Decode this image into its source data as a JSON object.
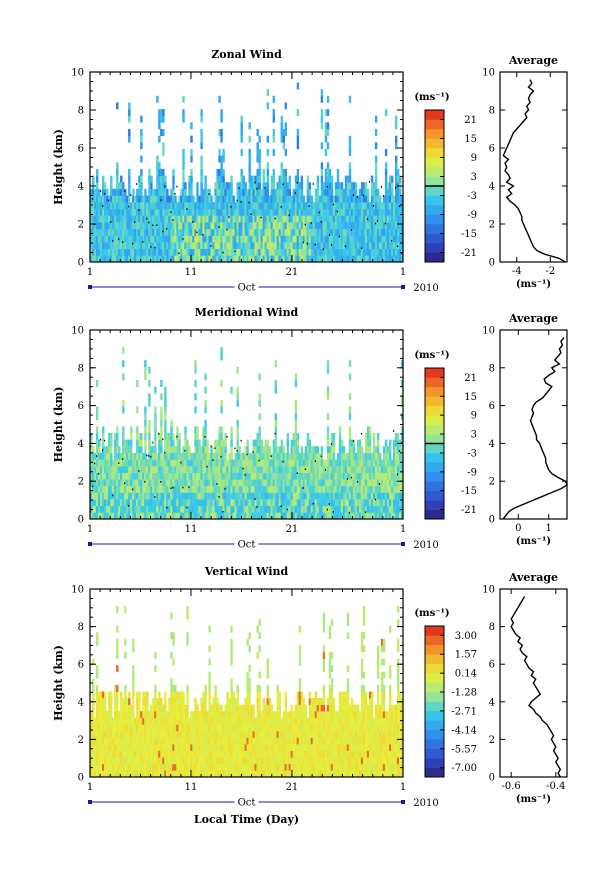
{
  "chart_data": [
    {
      "type": "heatmap",
      "title": "Zonal Wind",
      "ylabel": "Height (km)",
      "xlabel": "",
      "ylim": [
        0,
        10
      ],
      "yticks": [
        "0",
        "2",
        "4",
        "6",
        "8",
        "10"
      ],
      "xticks": [
        "1",
        "11",
        "21",
        "1"
      ],
      "month_label": "Oct",
      "year_label": "2010",
      "colorbar": {
        "unit": "(ms⁻¹)",
        "ticks": [
          "21",
          "15",
          "9",
          "3",
          "-3",
          "-9",
          "-15",
          "-21"
        ],
        "range": [
          -24,
          24
        ],
        "contour_level": 0
      },
      "profile": {
        "title": "Average",
        "unit_label": "(ms⁻¹)",
        "xticks": [
          "-4",
          "-2"
        ],
        "xlim": [
          -5.0,
          -1.0
        ],
        "heights": [
          0.0,
          0.2,
          0.4,
          0.6,
          0.8,
          1.0,
          1.2,
          1.4,
          1.6,
          1.8,
          2.0,
          2.2,
          2.4,
          2.6,
          2.8,
          3.0,
          3.2,
          3.4,
          3.6,
          3.8,
          4.0,
          4.2,
          4.4,
          4.6,
          4.8,
          5.0,
          5.2,
          5.4,
          5.6,
          5.8,
          6.0,
          6.2,
          6.4,
          6.6,
          6.8,
          7.0,
          7.2,
          7.4,
          7.6,
          7.8,
          8.0,
          8.2,
          8.4,
          8.6,
          8.8,
          9.0,
          9.2,
          9.4,
          9.6
        ],
        "values": [
          -1.1,
          -1.5,
          -2.3,
          -2.8,
          -3.0,
          -3.1,
          -3.2,
          -3.3,
          -3.4,
          -3.5,
          -3.6,
          -3.7,
          -3.7,
          -3.8,
          -3.9,
          -4.1,
          -4.4,
          -4.6,
          -4.3,
          -4.5,
          -4.2,
          -4.6,
          -4.4,
          -4.5,
          -4.7,
          -4.6,
          -4.7,
          -4.5,
          -4.8,
          -4.7,
          -4.6,
          -4.5,
          -4.4,
          -4.3,
          -4.2,
          -4.0,
          -3.8,
          -3.6,
          -3.4,
          -3.5,
          -3.3,
          -3.4,
          -3.2,
          -3.3,
          -3.2,
          -3.0,
          -3.3,
          -3.1,
          -3.2
        ]
      }
    },
    {
      "type": "heatmap",
      "title": "Meridional Wind",
      "ylabel": "Height (km)",
      "xlabel": "",
      "ylim": [
        0,
        10
      ],
      "yticks": [
        "0",
        "2",
        "4",
        "6",
        "8",
        "10"
      ],
      "xticks": [
        "1",
        "11",
        "21",
        "1"
      ],
      "month_label": "Oct",
      "year_label": "2010",
      "colorbar": {
        "unit": "(ms⁻¹)",
        "ticks": [
          "21",
          "15",
          "9",
          "3",
          "-3",
          "-9",
          "-15",
          "-21"
        ],
        "range": [
          -24,
          24
        ],
        "contour_level": 0
      },
      "profile": {
        "title": "Average",
        "unit_label": "(ms⁻¹)",
        "xticks": [
          "0",
          "1"
        ],
        "xlim": [
          -0.6,
          1.6
        ],
        "heights": [
          0.0,
          0.2,
          0.4,
          0.6,
          0.8,
          1.0,
          1.2,
          1.4,
          1.6,
          1.8,
          2.0,
          2.2,
          2.4,
          2.6,
          2.8,
          3.0,
          3.2,
          3.4,
          3.6,
          3.8,
          4.0,
          4.2,
          4.4,
          4.6,
          4.8,
          5.0,
          5.2,
          5.4,
          5.6,
          5.8,
          6.0,
          6.2,
          6.4,
          6.6,
          6.8,
          7.0,
          7.2,
          7.4,
          7.6,
          7.8,
          8.0,
          8.2,
          8.4,
          8.6,
          8.8,
          9.0,
          9.2,
          9.4,
          9.6
        ],
        "values": [
          -0.5,
          -0.4,
          -0.3,
          -0.1,
          0.2,
          0.5,
          0.8,
          1.1,
          1.4,
          1.6,
          1.55,
          1.3,
          1.1,
          1.0,
          0.95,
          0.9,
          0.9,
          0.85,
          0.8,
          0.75,
          0.7,
          0.6,
          0.6,
          0.55,
          0.5,
          0.45,
          0.4,
          0.45,
          0.5,
          0.45,
          0.5,
          0.6,
          0.8,
          0.9,
          1.0,
          1.1,
          0.9,
          0.85,
          1.0,
          1.2,
          1.1,
          1.35,
          1.2,
          1.3,
          1.4,
          1.35,
          1.45,
          1.4,
          1.5
        ]
      }
    },
    {
      "type": "heatmap",
      "title": "Vertical Wind",
      "ylabel": "Height (km)",
      "xlabel": "Local Time (Day)",
      "ylim": [
        0,
        10
      ],
      "yticks": [
        "0",
        "2",
        "4",
        "6",
        "8",
        "10"
      ],
      "xticks": [
        "1",
        "11",
        "21",
        "1"
      ],
      "month_label": "Oct",
      "year_label": "2010",
      "colorbar": {
        "unit": "(ms⁻¹)",
        "ticks": [
          "3.00",
          "1.57",
          "0.14",
          "-1.28",
          "-2.71",
          "-4.14",
          "-5.57",
          "-7.00"
        ],
        "range": [
          -7.7,
          3.7
        ],
        "contour_level": null
      },
      "profile": {
        "title": "Average",
        "unit_label": "(ms⁻¹)",
        "xticks": [
          "-0.6",
          "-0.4"
        ],
        "xlim": [
          -0.65,
          -0.35
        ],
        "heights": [
          0.0,
          0.2,
          0.4,
          0.6,
          0.8,
          1.0,
          1.2,
          1.4,
          1.6,
          1.8,
          2.0,
          2.2,
          2.4,
          2.6,
          2.8,
          3.0,
          3.2,
          3.4,
          3.6,
          3.8,
          4.0,
          4.2,
          4.4,
          4.6,
          4.8,
          5.0,
          5.2,
          5.4,
          5.6,
          5.8,
          6.0,
          6.2,
          6.4,
          6.6,
          6.8,
          7.0,
          7.2,
          7.4,
          7.6,
          7.8,
          8.0,
          8.2,
          8.4,
          8.6,
          8.8,
          9.0,
          9.2,
          9.4,
          9.6
        ],
        "values": [
          -0.38,
          -0.39,
          -0.38,
          -0.39,
          -0.4,
          -0.39,
          -0.4,
          -0.41,
          -0.4,
          -0.41,
          -0.42,
          -0.41,
          -0.42,
          -0.43,
          -0.44,
          -0.46,
          -0.47,
          -0.49,
          -0.5,
          -0.52,
          -0.51,
          -0.49,
          -0.47,
          -0.48,
          -0.49,
          -0.5,
          -0.49,
          -0.51,
          -0.5,
          -0.52,
          -0.53,
          -0.54,
          -0.53,
          -0.55,
          -0.56,
          -0.55,
          -0.57,
          -0.56,
          -0.58,
          -0.59,
          -0.6,
          -0.59,
          -0.6,
          -0.59,
          -0.58,
          -0.57,
          -0.56,
          -0.55,
          -0.54
        ]
      }
    }
  ]
}
